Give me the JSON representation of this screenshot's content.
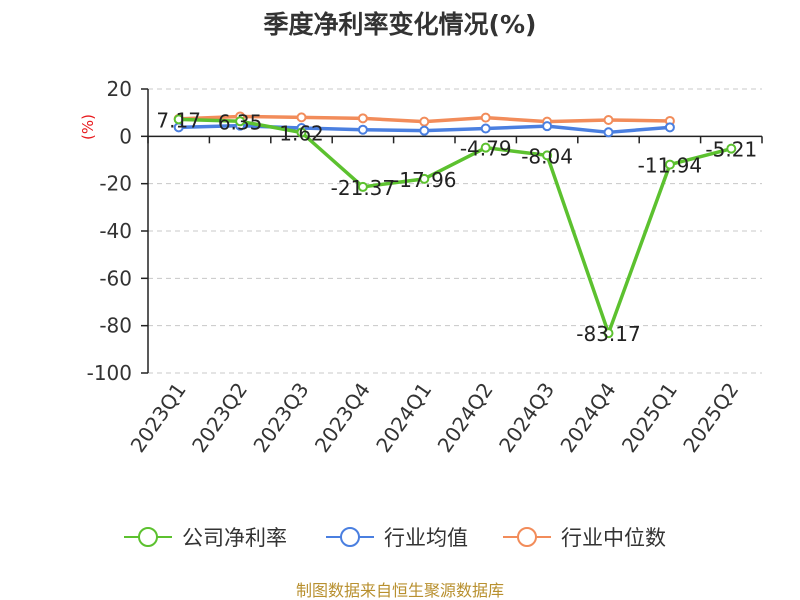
{
  "chart_data": {
    "type": "line",
    "title": "季度净利率变化情况(%)",
    "ylabel": "(%)",
    "ylim": [
      -100,
      20
    ],
    "yticks": [
      20,
      0,
      -20,
      -40,
      -60,
      -80,
      -100
    ],
    "grid": true,
    "legend_position": "bottom",
    "categories": [
      "2023Q1",
      "2023Q2",
      "2023Q3",
      "2023Q4",
      "2024Q1",
      "2024Q2",
      "2024Q3",
      "2024Q4",
      "2025Q1",
      "2025Q2"
    ],
    "series": [
      {
        "name": "公司净利率",
        "color": "#5cc12f",
        "values": [
          7.17,
          6.35,
          1.62,
          -21.37,
          -17.96,
          -4.79,
          -8.04,
          -83.17,
          -11.94,
          -5.21
        ],
        "data_labels": [
          "7.17",
          "6.35",
          "1.62",
          "-21.37",
          "-17.96",
          "-4.79",
          "-8.04",
          "-83.17",
          "-11.94",
          "-5.21"
        ]
      },
      {
        "name": "行业均值",
        "color": "#4a7fe0",
        "values": [
          3.8,
          4.5,
          3.5,
          2.8,
          2.4,
          3.3,
          4.3,
          1.7,
          3.8,
          null
        ]
      },
      {
        "name": "行业中位数",
        "color": "#f28c5a",
        "values": [
          7.4,
          8.4,
          8.0,
          7.6,
          6.2,
          7.9,
          6.2,
          6.9,
          6.5,
          null
        ]
      }
    ]
  },
  "source_text": "制图数据来自恒生聚源数据库"
}
